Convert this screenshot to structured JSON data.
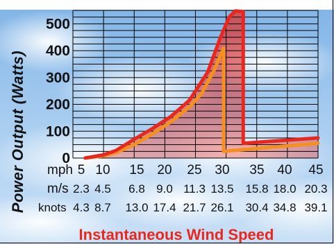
{
  "chart_data": {
    "type": "line",
    "title": "",
    "ylabel": "Power Output (Watts)",
    "xlabel": "Instantaneous Wind Speed",
    "xlim": [
      5,
      45
    ],
    "ylim": [
      0,
      550
    ],
    "y_ticks": [
      "500",
      "400",
      "300",
      "200",
      "100",
      "0"
    ],
    "x_tick_rows": [
      {
        "unit": "mph",
        "labels": [
          "5",
          "10",
          "15",
          "20",
          "25",
          "30",
          "35",
          "40",
          "45"
        ]
      },
      {
        "unit": "m/s",
        "labels": [
          "2.3",
          "4.5",
          "6.8",
          "9.0",
          "11.3",
          "13.5",
          "15.8",
          "18.0",
          "20.3"
        ]
      },
      {
        "unit": "knots",
        "labels": [
          "4.3",
          "8.7",
          "13.0",
          "17.4",
          "21.7",
          "26.1",
          "30.4",
          "34.8",
          "39.1"
        ]
      }
    ],
    "grid": true,
    "series": [
      {
        "color": "#e8281e",
        "points": [
          [
            7,
            0
          ],
          [
            10,
            12
          ],
          [
            12,
            28
          ],
          [
            15,
            70
          ],
          [
            18,
            110
          ],
          [
            21,
            155
          ],
          [
            24,
            215
          ],
          [
            27,
            320
          ],
          [
            29,
            445
          ],
          [
            30.5,
            525
          ],
          [
            31.5,
            548
          ],
          [
            32.8,
            545
          ],
          [
            32.8,
            55
          ],
          [
            45,
            75
          ]
        ]
      },
      {
        "color": "#f5901e",
        "points": [
          [
            7,
            0
          ],
          [
            10,
            8
          ],
          [
            12,
            20
          ],
          [
            15,
            50
          ],
          [
            18,
            90
          ],
          [
            21,
            135
          ],
          [
            24,
            190
          ],
          [
            26,
            240
          ],
          [
            28,
            325
          ],
          [
            29.6,
            410
          ],
          [
            29.6,
            25
          ],
          [
            45,
            55
          ]
        ]
      }
    ]
  },
  "colors": {
    "axis_title": "#e8281e",
    "grid": "#000000",
    "fill": "#e8281e"
  }
}
